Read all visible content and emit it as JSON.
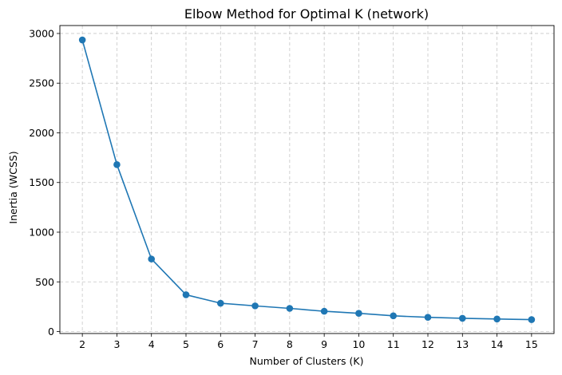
{
  "chart_data": {
    "type": "line",
    "title": "Elbow Method for Optimal K (network)",
    "xlabel": "Number of Clusters (K)",
    "ylabel": "Inertia (WCSS)",
    "x": [
      2,
      3,
      4,
      5,
      6,
      7,
      8,
      9,
      10,
      11,
      12,
      13,
      14,
      15
    ],
    "x_tick_labels": [
      "2",
      "3",
      "4",
      "5",
      "6",
      "7",
      "8",
      "9",
      "10",
      "11",
      "12",
      "13",
      "14",
      "15"
    ],
    "y_ticks": [
      0,
      500,
      1000,
      1500,
      2000,
      2500,
      3000
    ],
    "y_tick_labels": [
      "0",
      "500",
      "1000",
      "1500",
      "2000",
      "2500",
      "3000"
    ],
    "xlim": [
      1.35,
      15.65
    ],
    "ylim": [
      -20,
      3080
    ],
    "grid": true,
    "marker": "circle",
    "series": [
      {
        "values": [
          2935,
          1680,
          730,
          370,
          285,
          258,
          233,
          204,
          183,
          158,
          143,
          133,
          126,
          120
        ],
        "color": "#1f77b4"
      }
    ]
  }
}
